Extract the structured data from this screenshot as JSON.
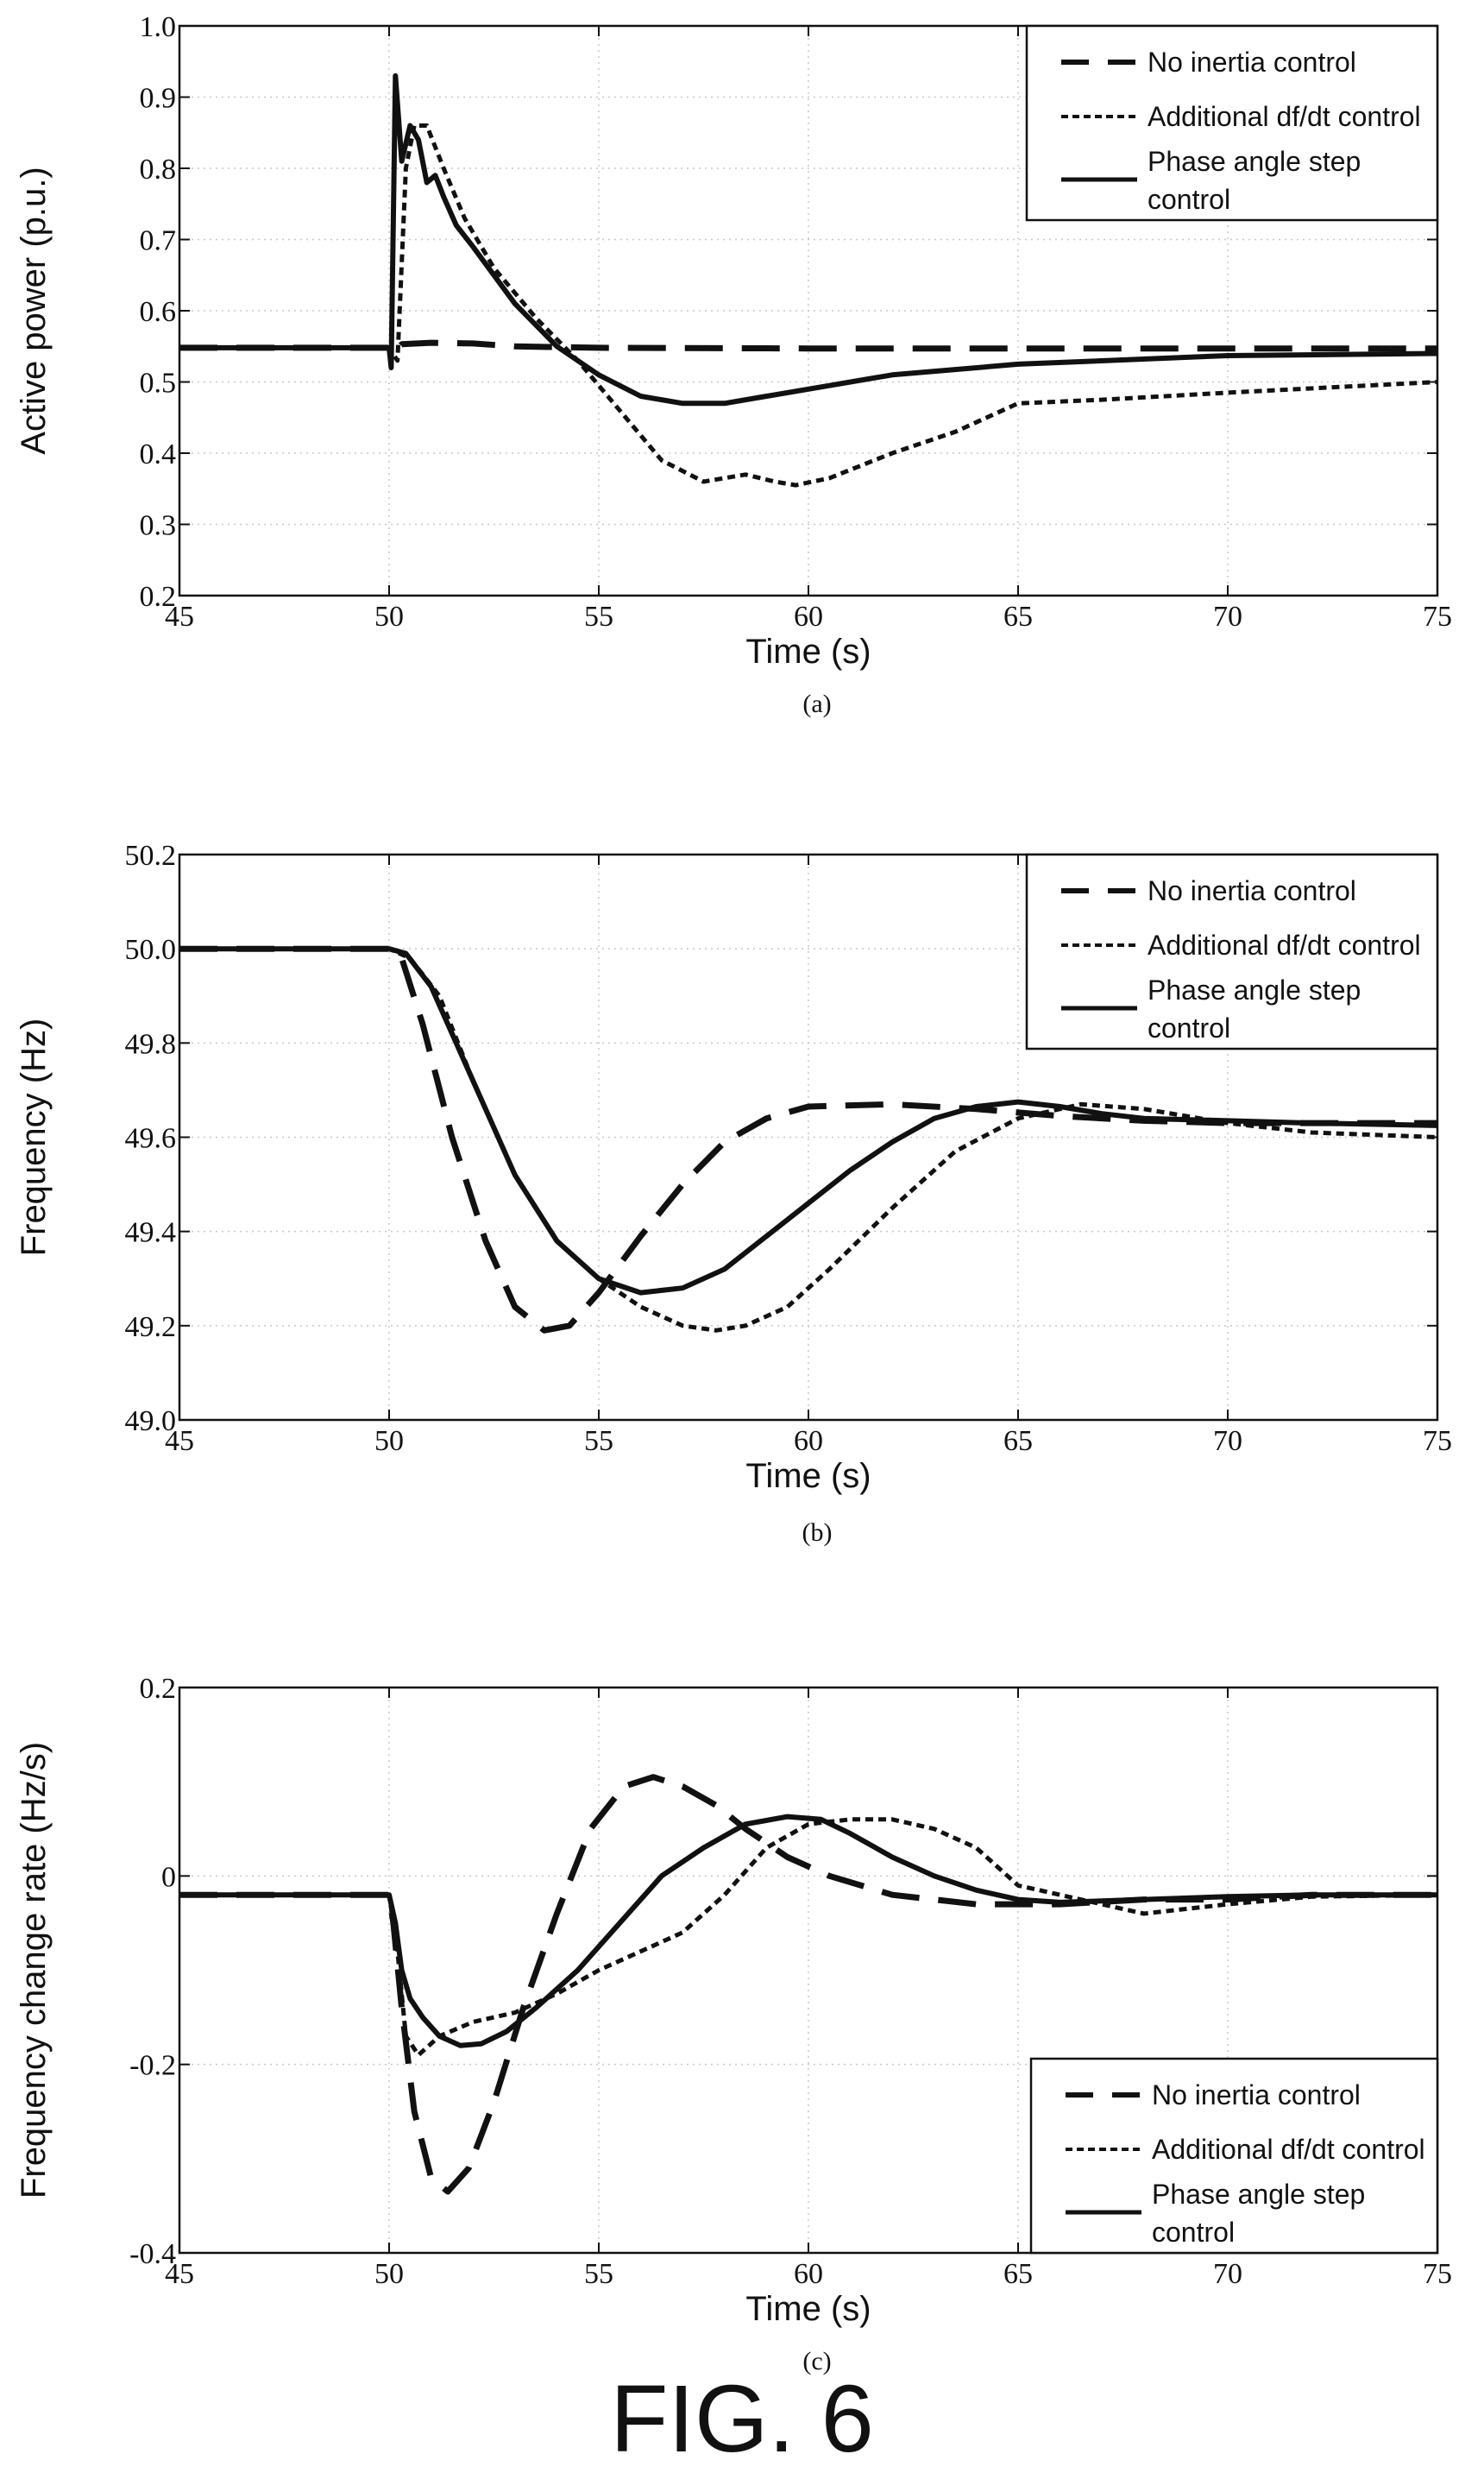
{
  "figure_title": "FIG. 6",
  "chart_data": [
    {
      "type": "line",
      "subfigure": "(a)",
      "xlabel": "Time (s)",
      "ylabel": "Active power (p.u.)",
      "xlim": [
        45,
        75
      ],
      "ylim": [
        0.2,
        1.0
      ],
      "xticks": [
        "45",
        "50",
        "55",
        "60",
        "65",
        "70",
        "75"
      ],
      "yticks": [
        "0.2",
        "0.3",
        "0.4",
        "0.5",
        "0.6",
        "0.7",
        "0.8",
        "0.9",
        "1.0"
      ],
      "grid": true,
      "legend_position": "top-right",
      "series": [
        {
          "name": "No inertia control",
          "style": "dashed",
          "x": [
            45,
            50,
            50.1,
            50.3,
            51,
            52,
            53,
            55,
            60,
            65,
            70,
            75
          ],
          "y": [
            0.548,
            0.548,
            0.54,
            0.553,
            0.555,
            0.554,
            0.55,
            0.548,
            0.547,
            0.547,
            0.547,
            0.547
          ]
        },
        {
          "name": "Additional df/dt control",
          "style": "dotted",
          "x": [
            45,
            50,
            50.2,
            50.4,
            50.6,
            50.9,
            51.3,
            51.8,
            52.5,
            53.5,
            54.5,
            55.5,
            56.5,
            57.5,
            58.5,
            59.2,
            59.7,
            60.5,
            62,
            63.5,
            65,
            67,
            70,
            75
          ],
          "y": [
            0.548,
            0.548,
            0.53,
            0.8,
            0.86,
            0.86,
            0.8,
            0.73,
            0.66,
            0.59,
            0.53,
            0.46,
            0.39,
            0.36,
            0.37,
            0.36,
            0.355,
            0.365,
            0.4,
            0.43,
            0.47,
            0.475,
            0.485,
            0.5
          ]
        },
        {
          "name": "Phase angle step control",
          "style": "solid",
          "x": [
            45,
            50,
            50.05,
            50.15,
            50.3,
            50.5,
            50.7,
            50.9,
            51.1,
            51.3,
            51.6,
            52,
            52.5,
            53,
            54,
            55,
            56,
            57,
            58,
            59,
            60,
            62,
            65,
            70,
            75
          ],
          "y": [
            0.548,
            0.548,
            0.52,
            0.93,
            0.81,
            0.86,
            0.84,
            0.78,
            0.79,
            0.76,
            0.72,
            0.69,
            0.65,
            0.61,
            0.55,
            0.51,
            0.48,
            0.47,
            0.47,
            0.48,
            0.49,
            0.51,
            0.525,
            0.537,
            0.54
          ]
        }
      ]
    },
    {
      "type": "line",
      "subfigure": "(b)",
      "xlabel": "Time (s)",
      "ylabel": "Frequency (Hz)",
      "xlim": [
        45,
        75
      ],
      "ylim": [
        49.0,
        50.2
      ],
      "xticks": [
        "45",
        "50",
        "55",
        "60",
        "65",
        "70",
        "75"
      ],
      "yticks": [
        "49.0",
        "49.2",
        "49.4",
        "49.6",
        "49.8",
        "50.0",
        "50.2"
      ],
      "grid": true,
      "legend_position": "top-right",
      "series": [
        {
          "name": "No inertia control",
          "style": "dashed",
          "x": [
            45,
            50,
            50.3,
            50.8,
            51.5,
            52.3,
            53,
            53.7,
            54.3,
            55,
            56,
            57,
            58,
            59,
            60,
            62,
            64,
            66,
            68,
            70,
            72,
            75
          ],
          "y": [
            50.0,
            50.0,
            49.98,
            49.84,
            49.6,
            49.38,
            49.24,
            49.19,
            49.2,
            49.27,
            49.39,
            49.5,
            49.59,
            49.64,
            49.665,
            49.67,
            49.66,
            49.645,
            49.635,
            49.63,
            49.63,
            49.63
          ]
        },
        {
          "name": "Additional df/dt control",
          "style": "dotted",
          "x": [
            45,
            50,
            50.5,
            51.2,
            52,
            53,
            54,
            55,
            56,
            57,
            57.8,
            58.5,
            59.5,
            60.5,
            62,
            63.5,
            65,
            66.5,
            68,
            70,
            72,
            75
          ],
          "y": [
            50.0,
            50.0,
            49.98,
            49.9,
            49.72,
            49.52,
            49.38,
            49.3,
            49.24,
            49.2,
            49.19,
            49.2,
            49.24,
            49.32,
            49.45,
            49.57,
            49.64,
            49.67,
            49.66,
            49.63,
            49.61,
            49.6
          ]
        },
        {
          "name": "Phase angle step control",
          "style": "solid",
          "x": [
            45,
            50,
            50.4,
            51,
            52,
            53,
            54,
            55,
            56,
            57,
            58,
            59,
            60,
            61,
            62,
            63,
            64,
            65,
            66,
            67,
            68,
            70,
            72,
            75
          ],
          "y": [
            50.0,
            50.0,
            49.99,
            49.92,
            49.72,
            49.52,
            49.38,
            49.3,
            49.27,
            49.28,
            49.32,
            49.39,
            49.46,
            49.53,
            49.59,
            49.64,
            49.665,
            49.675,
            49.665,
            49.65,
            49.64,
            49.635,
            49.63,
            49.625
          ]
        }
      ]
    },
    {
      "type": "line",
      "subfigure": "(c)",
      "xlabel": "Time (s)",
      "ylabel": "Frequency change rate (Hz/s)",
      "xlim": [
        45,
        75
      ],
      "ylim": [
        -0.4,
        0.2
      ],
      "xticks": [
        "45",
        "50",
        "55",
        "60",
        "65",
        "70",
        "75"
      ],
      "yticks": [
        "-0.4",
        "-0.2",
        "0",
        "0.2"
      ],
      "grid": true,
      "legend_position": "bottom-right",
      "series": [
        {
          "name": "No inertia control",
          "style": "dashed",
          "x": [
            45,
            50,
            50.1,
            50.3,
            50.6,
            51,
            51.4,
            51.9,
            52.5,
            53.2,
            54,
            54.8,
            55.6,
            56.3,
            57,
            57.8,
            58.5,
            59.5,
            60.5,
            62,
            64,
            66,
            68,
            70,
            72,
            75
          ],
          "y": [
            -0.02,
            -0.02,
            -0.05,
            -0.14,
            -0.25,
            -0.32,
            -0.335,
            -0.31,
            -0.24,
            -0.14,
            -0.04,
            0.05,
            0.095,
            0.105,
            0.095,
            0.075,
            0.05,
            0.02,
            0.0,
            -0.02,
            -0.03,
            -0.03,
            -0.025,
            -0.025,
            -0.02,
            -0.02
          ]
        },
        {
          "name": "Additional df/dt control",
          "style": "dotted",
          "x": [
            45,
            50,
            50.2,
            50.4,
            50.7,
            51.2,
            52,
            53,
            54,
            55,
            56,
            57,
            58,
            59,
            60,
            61,
            62,
            63,
            64,
            65,
            66,
            67,
            68,
            69,
            70,
            72,
            75
          ],
          "y": [
            -0.02,
            -0.02,
            -0.08,
            -0.17,
            -0.19,
            -0.17,
            -0.155,
            -0.145,
            -0.125,
            -0.1,
            -0.08,
            -0.06,
            -0.02,
            0.03,
            0.055,
            0.06,
            0.06,
            0.05,
            0.03,
            -0.01,
            -0.02,
            -0.03,
            -0.04,
            -0.035,
            -0.03,
            -0.022,
            -0.02
          ]
        },
        {
          "name": "Phase angle step control",
          "style": "solid",
          "x": [
            45,
            50,
            50.15,
            50.3,
            50.5,
            50.8,
            51.2,
            51.7,
            52.2,
            52.8,
            53.5,
            54.5,
            55.5,
            56.5,
            57.5,
            58.5,
            59.5,
            60.3,
            61,
            62,
            63,
            64,
            65,
            66,
            68,
            70,
            72,
            75
          ],
          "y": [
            -0.02,
            -0.02,
            -0.05,
            -0.1,
            -0.13,
            -0.15,
            -0.17,
            -0.18,
            -0.178,
            -0.165,
            -0.14,
            -0.1,
            -0.05,
            0.0,
            0.03,
            0.055,
            0.063,
            0.06,
            0.045,
            0.02,
            0.0,
            -0.015,
            -0.025,
            -0.028,
            -0.025,
            -0.022,
            -0.02,
            -0.02
          ]
        }
      ]
    }
  ]
}
